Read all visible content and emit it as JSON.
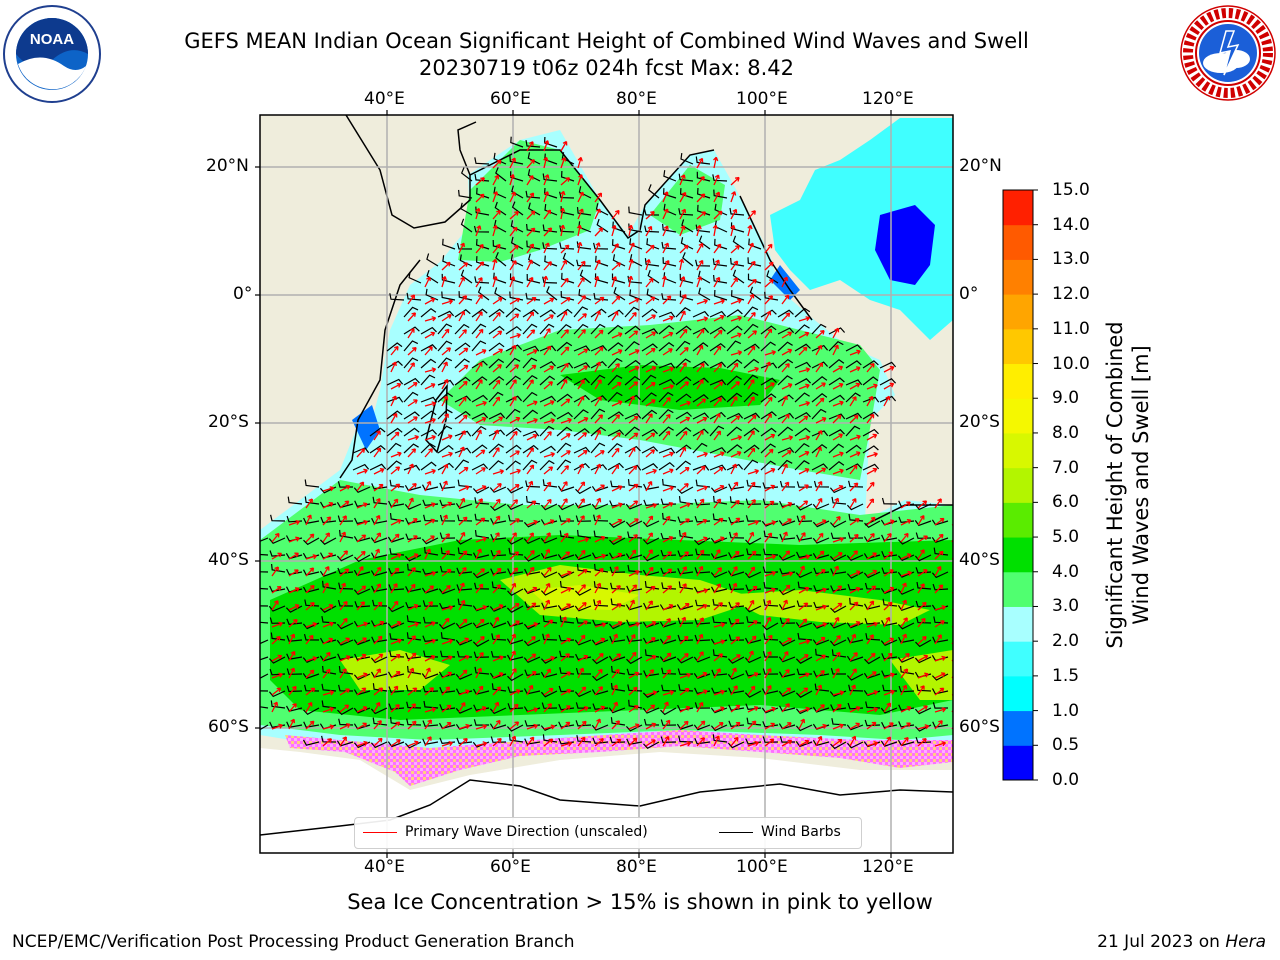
{
  "title": {
    "line1": "GEFS MEAN Indian Ocean Significant Height of Combined Wind Waves and Swell",
    "line2": "20230719 t06z 024h fcst   Max: 8.42"
  },
  "logos": {
    "left": {
      "name": "noaa-logo",
      "text": "NOAA",
      "ring_text": "NATIONAL OCEANIC AND ATMOSPHERIC ADMINISTRATION · U.S. DEPARTMENT OF COMMERCE"
    },
    "right": {
      "name": "nws-logo",
      "ring_text": "NATIONAL WEATHER SERVICE"
    }
  },
  "map": {
    "top_lon_ticks": [
      "40°E",
      "60°E",
      "80°E",
      "100°E",
      "120°E"
    ],
    "bottom_lon_ticks": [
      "40°E",
      "60°E",
      "80°E",
      "100°E",
      "120°E"
    ],
    "left_lat_ticks": [
      "20°N",
      "0°",
      "20°S",
      "40°S",
      "60°S"
    ],
    "right_lat_ticks": [
      "20°N",
      "0°",
      "20°S",
      "40°S",
      "60°S"
    ],
    "land_color": "#efeddc",
    "ocean_low_color": "#a8ffff",
    "legend": {
      "wave": {
        "label": "Primary Wave Direction (unscaled)",
        "color": "#ff0000"
      },
      "wind": {
        "label": "Wind Barbs",
        "color": "#000000"
      }
    }
  },
  "colorbar": {
    "title_line1": "Significant Height of Combined",
    "title_line2": "Wind Waves and Swell [m]",
    "ticks": [
      "0.0",
      "0.5",
      "1.0",
      "1.5",
      "2.0",
      "3.0",
      "4.0",
      "5.0",
      "6.0",
      "7.0",
      "8.0",
      "9.0",
      "10.0",
      "11.0",
      "12.0",
      "13.0",
      "14.0",
      "15.0"
    ],
    "colors": [
      "#0000ff",
      "#0073ff",
      "#00ffff",
      "#40ffff",
      "#a8ffff",
      "#50ff70",
      "#00e000",
      "#5aec00",
      "#b3f500",
      "#d8f800",
      "#f5f800",
      "#ffee00",
      "#ffc800",
      "#ffa500",
      "#ff8000",
      "#ff5a00",
      "#ff2000"
    ]
  },
  "caption": "Sea Ice Concentration > 15% is shown in pink to yellow",
  "footer": {
    "left": "NCEP/EMC/Verification Post Processing Product Generation Branch",
    "right_date": "21 Jul 2023 on ",
    "right_host": "Hera"
  }
}
